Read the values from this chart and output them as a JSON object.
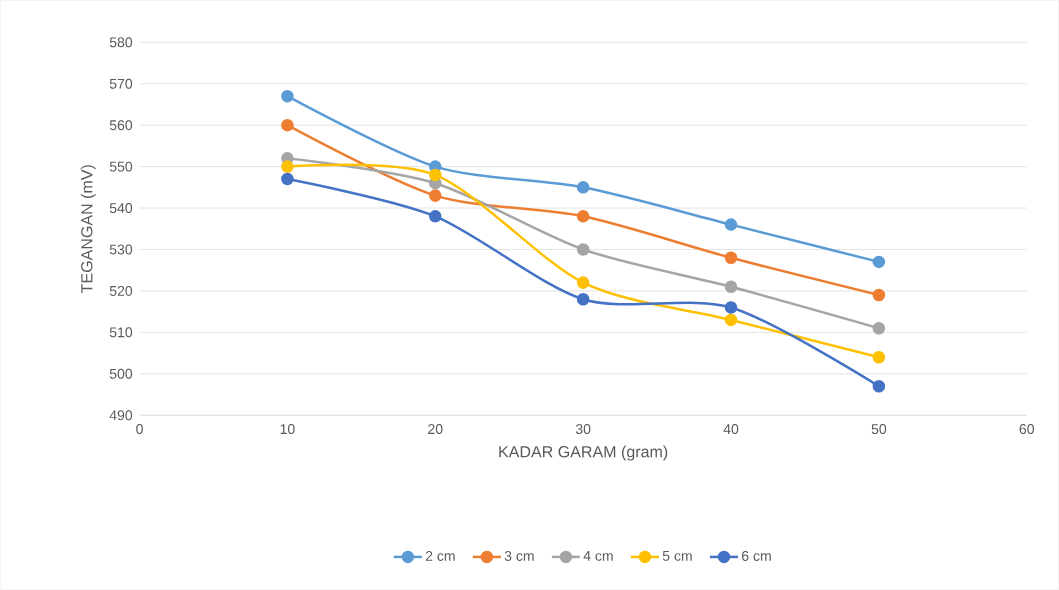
{
  "chart_data": {
    "type": "line",
    "xlabel": "KADAR GARAM (gram)",
    "ylabel": "TEGANGAN (mV)",
    "x": [
      10,
      20,
      30,
      40,
      50
    ],
    "series": [
      {
        "name": "2 cm",
        "color": "#5b9bd5",
        "values": [
          567,
          550,
          545,
          536,
          527
        ]
      },
      {
        "name": "3 cm",
        "color": "#ed7d31",
        "values": [
          560,
          543,
          538,
          528,
          519
        ]
      },
      {
        "name": "4 cm",
        "color": "#a5a5a5",
        "values": [
          552,
          546,
          530,
          521,
          511
        ]
      },
      {
        "name": "5 cm",
        "color": "#ffc000",
        "values": [
          550,
          548,
          522,
          513,
          504
        ]
      },
      {
        "name": "6 cm",
        "color": "#4472c4",
        "values": [
          547,
          538,
          518,
          516,
          497
        ]
      }
    ],
    "xlim": [
      0,
      60
    ],
    "xticks": [
      0,
      10,
      20,
      30,
      40,
      50,
      60
    ],
    "ylim": [
      490,
      580
    ],
    "yticks": [
      490,
      500,
      510,
      520,
      530,
      540,
      550,
      560,
      570,
      580
    ],
    "grid": "y",
    "legend": "bottom",
    "marker": "circle",
    "line_style": "solid"
  }
}
